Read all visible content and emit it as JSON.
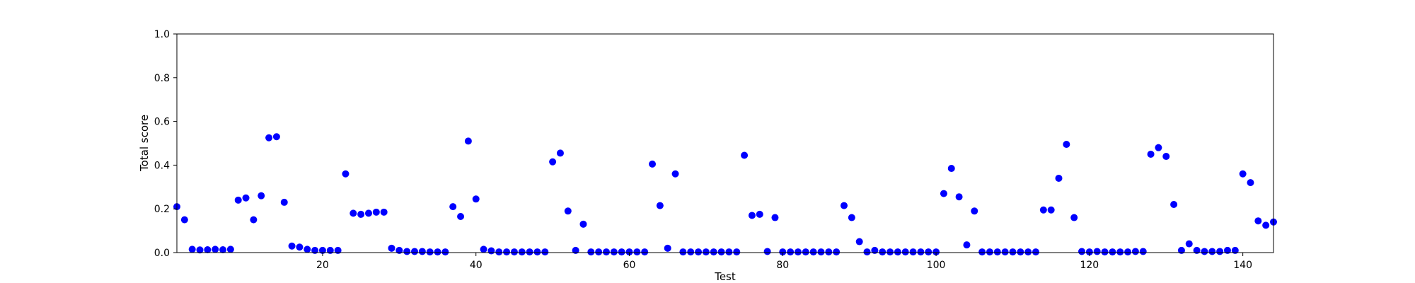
{
  "chart_data": {
    "type": "scatter",
    "xlabel": "Test",
    "ylabel": "Total score",
    "xlim": [
      1,
      144
    ],
    "ylim": [
      0.0,
      1.0
    ],
    "x_ticks": [
      20,
      40,
      60,
      80,
      100,
      120,
      140
    ],
    "y_ticks": [
      0.0,
      0.2,
      0.4,
      0.6,
      0.8,
      1.0
    ],
    "x_tick_labels": [
      "20",
      "40",
      "60",
      "80",
      "100",
      "120",
      "140"
    ],
    "y_tick_labels": [
      "0.0",
      "0.2",
      "0.4",
      "0.6",
      "0.8",
      "1.0"
    ],
    "grid": false,
    "marker_color": "#0000ff",
    "series": [
      {
        "x": [
          1,
          2,
          3,
          4,
          5,
          6,
          7,
          8,
          9,
          10,
          11,
          12,
          13,
          14,
          15,
          16,
          17,
          18,
          19,
          20,
          21,
          22,
          23,
          24,
          25,
          26,
          27,
          28,
          29,
          30,
          31,
          32,
          33,
          34,
          35,
          36,
          37,
          38,
          39,
          40,
          41,
          42,
          43,
          44,
          45,
          46,
          47,
          48,
          49,
          50,
          51,
          52,
          53,
          54,
          55,
          56,
          57,
          58,
          59,
          60,
          61,
          62,
          63,
          64,
          65,
          66,
          67,
          68,
          69,
          70,
          71,
          72,
          73,
          74,
          75,
          76,
          77,
          78,
          79,
          80,
          81,
          82,
          83,
          84,
          85,
          86,
          87,
          88,
          89,
          90,
          91,
          92,
          93,
          94,
          95,
          96,
          97,
          98,
          99,
          100,
          101,
          102,
          103,
          104,
          105,
          106,
          107,
          108,
          109,
          110,
          111,
          112,
          113,
          114,
          115,
          116,
          117,
          118,
          119,
          120,
          121,
          122,
          123,
          124,
          125,
          126,
          127,
          128,
          129,
          130,
          131,
          132,
          133,
          134,
          135,
          136,
          137,
          138,
          139,
          140,
          141,
          142,
          143,
          144
        ],
        "y": [
          0.21,
          0.15,
          0.015,
          0.012,
          0.013,
          0.015,
          0.013,
          0.015,
          0.24,
          0.25,
          0.15,
          0.26,
          0.525,
          0.53,
          0.23,
          0.03,
          0.025,
          0.015,
          0.01,
          0.01,
          0.01,
          0.01,
          0.36,
          0.18,
          0.175,
          0.18,
          0.185,
          0.185,
          0.02,
          0.01,
          0.005,
          0.005,
          0.005,
          0.003,
          0.003,
          0.003,
          0.21,
          0.165,
          0.51,
          0.245,
          0.015,
          0.008,
          0.003,
          0.003,
          0.003,
          0.003,
          0.003,
          0.003,
          0.003,
          0.415,
          0.455,
          0.19,
          0.01,
          0.13,
          0.003,
          0.003,
          0.003,
          0.003,
          0.003,
          0.003,
          0.003,
          0.003,
          0.405,
          0.215,
          0.02,
          0.36,
          0.003,
          0.003,
          0.003,
          0.003,
          0.003,
          0.003,
          0.003,
          0.003,
          0.445,
          0.17,
          0.175,
          0.005,
          0.16,
          0.003,
          0.003,
          0.003,
          0.003,
          0.003,
          0.003,
          0.003,
          0.003,
          0.215,
          0.16,
          0.05,
          0.003,
          0.01,
          0.003,
          0.003,
          0.003,
          0.003,
          0.003,
          0.003,
          0.003,
          0.003,
          0.27,
          0.385,
          0.255,
          0.035,
          0.19,
          0.003,
          0.003,
          0.003,
          0.003,
          0.003,
          0.003,
          0.003,
          0.003,
          0.195,
          0.195,
          0.34,
          0.495,
          0.16,
          0.005,
          0.003,
          0.005,
          0.003,
          0.003,
          0.003,
          0.003,
          0.005,
          0.005,
          0.45,
          0.48,
          0.44,
          0.22,
          0.01,
          0.04,
          0.01,
          0.005,
          0.005,
          0.005,
          0.01,
          0.01,
          0.36,
          0.32,
          0.145,
          0.125,
          0.14
        ]
      }
    ]
  }
}
